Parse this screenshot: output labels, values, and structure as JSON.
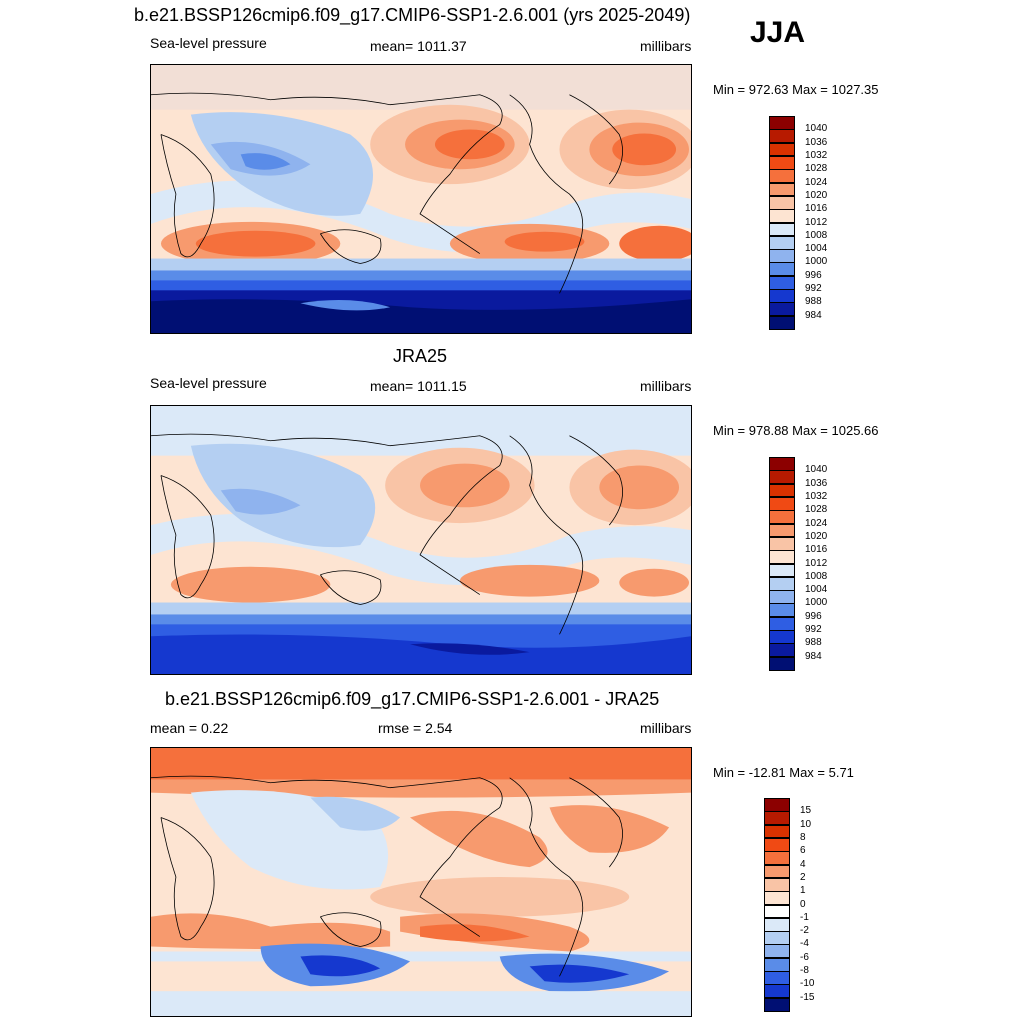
{
  "season": "JJA",
  "panels": [
    {
      "id": "model",
      "title": "b.e21.BSSP126cmip6.f09_g17.CMIP6-SSP1-2.6.001 (yrs 2025-2049)",
      "left_label": "Sea-level pressure",
      "center_label": "mean= 1011.37",
      "right_label": "millibars",
      "minmax": "Min = 972.63 Max = 1027.35",
      "colorbar": {
        "labels": [
          "1040",
          "1036",
          "1032",
          "1028",
          "1024",
          "1020",
          "1016",
          "1012",
          "1008",
          "1004",
          "1000",
          "996",
          "992",
          "988",
          "984"
        ],
        "colors": [
          "#8c0000",
          "#b71a00",
          "#d93200",
          "#f04a14",
          "#f5703c",
          "#f79a6e",
          "#f9c4a6",
          "#fde4d2",
          "#dbe9f8",
          "#b4cff2",
          "#8fb3ee",
          "#5a8ce8",
          "#2f5ee3",
          "#1538cf",
          "#0a1a9e",
          "#000f73"
        ]
      }
    },
    {
      "id": "obs",
      "title": "JRA25",
      "left_label": "Sea-level pressure",
      "center_label": "mean= 1011.15",
      "right_label": "millibars",
      "minmax": "Min = 978.88 Max = 1025.66",
      "colorbar": {
        "labels": [
          "1040",
          "1036",
          "1032",
          "1028",
          "1024",
          "1020",
          "1016",
          "1012",
          "1008",
          "1004",
          "1000",
          "996",
          "992",
          "988",
          "984"
        ],
        "colors": [
          "#8c0000",
          "#b71a00",
          "#d93200",
          "#f04a14",
          "#f5703c",
          "#f79a6e",
          "#f9c4a6",
          "#fde4d2",
          "#dbe9f8",
          "#b4cff2",
          "#8fb3ee",
          "#5a8ce8",
          "#2f5ee3",
          "#1538cf",
          "#0a1a9e",
          "#000f73"
        ]
      }
    },
    {
      "id": "diff",
      "title": "b.e21.BSSP126cmip6.f09_g17.CMIP6-SSP1-2.6.001 - JRA25",
      "left_label": "mean =   0.22",
      "center_label": "rmse =   2.54",
      "right_label": "millibars",
      "minmax": "Min = -12.81 Max =   5.71",
      "colorbar": {
        "labels": [
          "15",
          "10",
          "8",
          "6",
          "4",
          "2",
          "1",
          "0",
          "-1",
          "-2",
          "-4",
          "-6",
          "-8",
          "-10",
          "-15"
        ],
        "colors": [
          "#8c0000",
          "#b71a00",
          "#d93200",
          "#f04a14",
          "#f5703c",
          "#f79a6e",
          "#f9c4a6",
          "#fde4d2",
          "#ffffff",
          "#dbe9f8",
          "#b4cff2",
          "#8fb3ee",
          "#5a8ce8",
          "#2f5ee3",
          "#1538cf",
          "#000f73"
        ]
      }
    }
  ]
}
